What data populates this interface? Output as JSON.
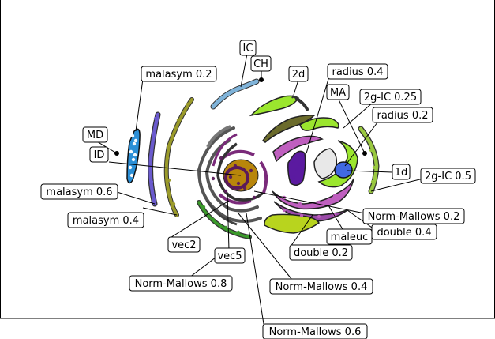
{
  "labels": [
    {
      "key": "ic",
      "text": "IC"
    },
    {
      "key": "ch",
      "text": "CH"
    },
    {
      "key": "malasym02",
      "text": "malasym 0.2"
    },
    {
      "key": "d2",
      "text": "2d"
    },
    {
      "key": "radius04",
      "text": "radius 0.4"
    },
    {
      "key": "ma",
      "text": "MA"
    },
    {
      "key": "g2ic025",
      "text": "2g-IC 0.25"
    },
    {
      "key": "radius02",
      "text": "radius 0.2"
    },
    {
      "key": "md",
      "text": "MD"
    },
    {
      "key": "id",
      "text": "ID"
    },
    {
      "key": "d1",
      "text": "1d"
    },
    {
      "key": "g2ic05",
      "text": "2g-IC 0.5"
    },
    {
      "key": "malasym06",
      "text": "malasym 0.6"
    },
    {
      "key": "malasym04",
      "text": "malasym 0.4"
    },
    {
      "key": "nm02",
      "text": "Norm-Mallows 0.2"
    },
    {
      "key": "double04",
      "text": "double 0.4"
    },
    {
      "key": "maleuc",
      "text": "maleuc"
    },
    {
      "key": "vec2",
      "text": "vec2"
    },
    {
      "key": "double02",
      "text": "double 0.2"
    },
    {
      "key": "vec5",
      "text": "vec5"
    },
    {
      "key": "nm08",
      "text": "Norm-Mallows 0.8"
    },
    {
      "key": "nm04",
      "text": "Norm-Mallows 0.4"
    },
    {
      "key": "nm06",
      "text": "Norm-Mallows 0.6"
    }
  ],
  "clusters": [
    {
      "key": "ic",
      "color": "#7fb3d9"
    },
    {
      "key": "ch",
      "color": "#7fb3d9"
    },
    {
      "key": "md",
      "color": "#2b8fd6"
    },
    {
      "key": "malasym02",
      "color": "#6a5acd"
    },
    {
      "key": "malasym06",
      "color": "#9a9a2a"
    },
    {
      "key": "d2",
      "color": "#9be62e"
    },
    {
      "key": "radius04",
      "color": "#6b6b2b"
    },
    {
      "key": "ma",
      "color": "#9be62e"
    },
    {
      "key": "g2ic05",
      "color": "#9ac940"
    },
    {
      "key": "d1",
      "color": "#4169e1"
    },
    {
      "key": "id",
      "color": "#b8860b"
    },
    {
      "key": "nm02",
      "color": "#bf5fbf"
    },
    {
      "key": "maleuc",
      "color": "#bf5fbf"
    },
    {
      "key": "vec2",
      "color": "#3a9a2a"
    },
    {
      "key": "double02",
      "color": "#b8d41e"
    },
    {
      "key": "radius02",
      "color": "#5b1aa0"
    },
    {
      "key": "nm04",
      "color": "#7a2a7a"
    }
  ]
}
